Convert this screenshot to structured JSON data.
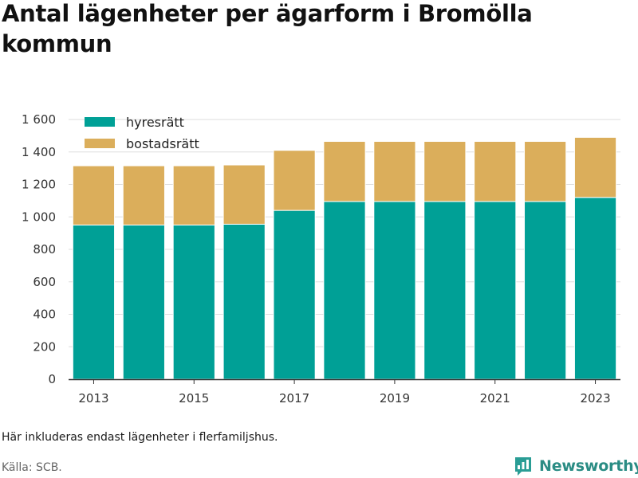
{
  "title": "Antal lägenheter per ägarform i Bromölla kommun",
  "note": "Här inkluderas endast lägenheter i flerfamiljshus.",
  "source": "Källa: SCB.",
  "brand": {
    "name": "Newsworthy",
    "icon": "newsworthy-logo-icon",
    "color": "#2a9d95"
  },
  "colors": {
    "hyresratt": "#00a096",
    "bostadsratt": "#dbae5b",
    "axis": "#333333",
    "grid": "#dddddd"
  },
  "chart_data": {
    "type": "bar",
    "stacked": true,
    "categories": [
      "2013",
      "2014",
      "2015",
      "2016",
      "2017",
      "2018",
      "2019",
      "2020",
      "2021",
      "2022",
      "2023"
    ],
    "x_tick_labels": [
      "2013",
      "2015",
      "2017",
      "2019",
      "2021",
      "2023"
    ],
    "series": [
      {
        "name": "hyresrätt",
        "color": "#00a096",
        "values": [
          950,
          950,
          950,
          955,
          1040,
          1095,
          1095,
          1095,
          1095,
          1095,
          1120
        ]
      },
      {
        "name": "bostadsrätt",
        "color": "#dbae5b",
        "values": [
          365,
          365,
          365,
          365,
          370,
          370,
          370,
          370,
          370,
          370,
          370
        ]
      }
    ],
    "ylim": [
      0,
      1600
    ],
    "y_ticks": [
      0,
      200,
      400,
      600,
      800,
      1000,
      1200,
      1400,
      1600
    ],
    "y_tick_labels": [
      "0",
      "200",
      "400",
      "600",
      "800",
      "1 000",
      "1 200",
      "1 400",
      "1 600"
    ],
    "grid": true,
    "legend_position": "top-left"
  }
}
